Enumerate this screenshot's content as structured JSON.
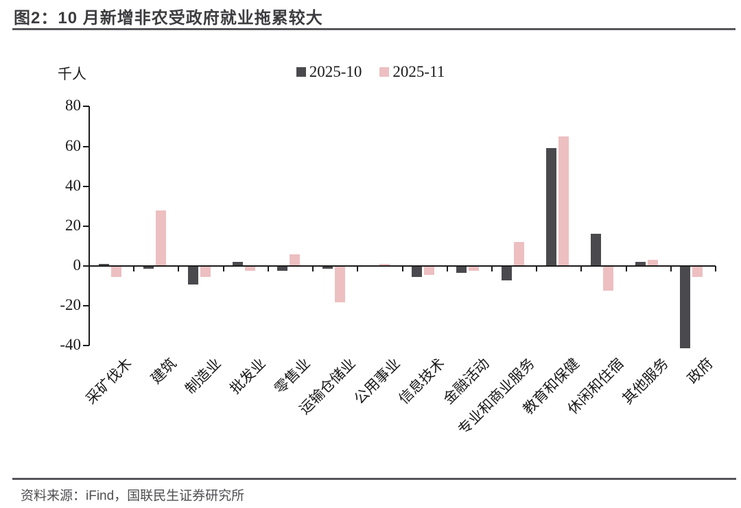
{
  "header": {
    "title": "图2：10 月新增非农受政府就业拖累较大"
  },
  "footer": {
    "source": "资料来源：iFind，国联民生证券研究所"
  },
  "chart_data": {
    "type": "bar",
    "title": "图2：10 月新增非农受政府就业拖累较大",
    "unit_label": "千人",
    "categories": [
      "采矿伐木",
      "建筑",
      "制造业",
      "批发业",
      "零售业",
      "运输仓储业",
      "公用事业",
      "信息技术",
      "金融活动",
      "专业和商业服务",
      "教育和保健",
      "休闲和住宿",
      "其他服务",
      "政府"
    ],
    "series": [
      {
        "name": "2025-10",
        "color": "#4a4a4e",
        "values": [
          1,
          -1,
          -9,
          2,
          -2,
          -1,
          0,
          -5,
          -3,
          -7,
          59,
          16,
          2,
          -41
        ]
      },
      {
        "name": "2025-11",
        "color": "#edbfc1",
        "values": [
          -5,
          28,
          -5,
          -2,
          6,
          -18,
          1,
          -4,
          -2,
          12,
          65,
          -12,
          3,
          -5
        ]
      }
    ],
    "ylabel": "千人",
    "ylim": [
      -40,
      80
    ],
    "ytick_step": 20,
    "grid": false,
    "legend_position": "top-center"
  }
}
